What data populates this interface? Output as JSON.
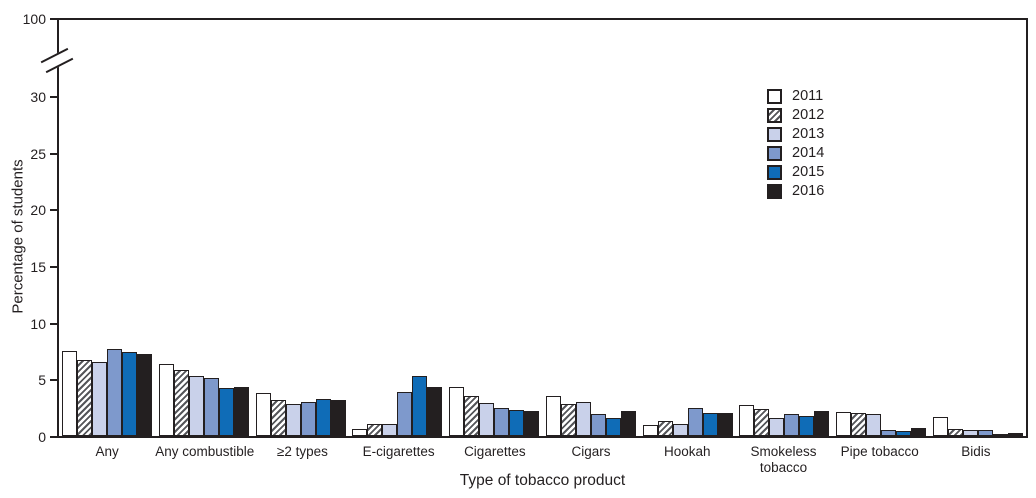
{
  "chart_data": {
    "type": "bar",
    "title": "",
    "xlabel": "Type of tobacco product",
    "ylabel": "Percentage of students",
    "categories": [
      "Any",
      "Any combustible",
      "≥2 types",
      "E-cigarettes",
      "Cigarettes",
      "Cigars",
      "Hookah",
      "Smokeless tobacco",
      "Pipe tobacco",
      "Bidis"
    ],
    "series": [
      {
        "name": "2011",
        "color": "#ffffff",
        "pattern": "solid",
        "values": [
          7.5,
          6.4,
          3.8,
          0.6,
          4.3,
          3.5,
          1.0,
          2.7,
          2.1,
          1.7
        ]
      },
      {
        "name": "2012",
        "color": "#ffffff",
        "pattern": "hatch",
        "values": [
          6.7,
          5.8,
          3.2,
          1.1,
          3.5,
          2.8,
          1.3,
          2.4,
          2.0,
          0.6
        ]
      },
      {
        "name": "2013",
        "color": "#c9d1ea",
        "pattern": "solid",
        "values": [
          6.5,
          5.3,
          2.8,
          1.1,
          2.9,
          3.0,
          1.1,
          1.6,
          1.9,
          0.5
        ]
      },
      {
        "name": "2014",
        "color": "#7e99cc",
        "pattern": "solid",
        "values": [
          7.7,
          5.1,
          3.0,
          3.9,
          2.5,
          1.9,
          2.5,
          1.9,
          0.5,
          0.5
        ]
      },
      {
        "name": "2015",
        "color": "#0f6cb7",
        "pattern": "solid",
        "values": [
          7.4,
          4.2,
          3.3,
          5.3,
          2.3,
          1.6,
          2.0,
          1.8,
          0.4,
          0.2
        ]
      },
      {
        "name": "2016",
        "color": "#231f20",
        "pattern": "solid",
        "values": [
          7.2,
          4.3,
          3.2,
          4.3,
          2.2,
          2.2,
          2.0,
          2.2,
          0.7,
          0.3
        ]
      }
    ],
    "y_ticks": [
      0,
      5,
      10,
      15,
      20,
      25,
      30
    ],
    "y_top_tick": 100,
    "axis_break": true,
    "ylim_display": [
      0,
      30
    ],
    "grid": false,
    "legend_position": "upper-right-inside",
    "wrap_labels": [
      "Smokeless tobacco"
    ],
    "axis_color": "#231f20"
  }
}
